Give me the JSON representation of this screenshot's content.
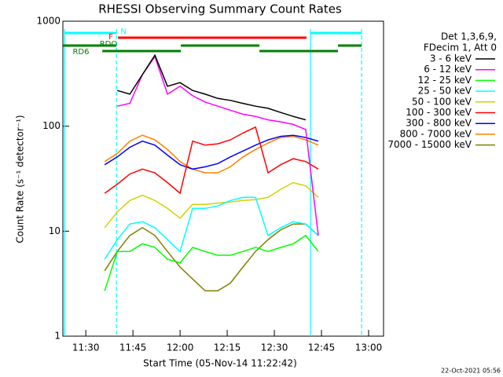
{
  "chart_data": {
    "type": "line",
    "title": "RHESSI Observing Summary Count Rates",
    "xlabel": "Start Time (05-Nov-14 11:22:42)",
    "ylabel": "Count Rate (s⁻¹ detector⁻¹)",
    "legend_header": [
      "Det 1,3,6,9,",
      "FDecim 1, Att 0"
    ],
    "footer": "22-Oct-2021 05:56",
    "log_y": true,
    "xlim": [
      682.7,
      784.75
    ],
    "ylim": [
      1,
      1000
    ],
    "xticks": [
      {
        "value": 690,
        "label": "11:30"
      },
      {
        "value": 705,
        "label": "11:45"
      },
      {
        "value": 720,
        "label": "12:00"
      },
      {
        "value": 735,
        "label": "12:15"
      },
      {
        "value": 750,
        "label": "12:30"
      },
      {
        "value": 765,
        "label": "12:45"
      },
      {
        "value": 780,
        "label": "13:00"
      }
    ],
    "yticks": [
      1,
      10,
      100,
      1000
    ],
    "x": [
      696,
      700,
      704,
      708,
      712,
      716,
      720,
      724,
      728,
      732,
      736,
      740,
      744,
      748,
      752,
      756,
      760,
      764
    ],
    "series": [
      {
        "name": "3 - 6 keV",
        "color": "#000000",
        "values": [
          null,
          219,
          202,
          310,
          475,
          240,
          260,
          219,
          202,
          184,
          176,
          165,
          155,
          148,
          135,
          124,
          115,
          null
        ]
      },
      {
        "name": "6 - 12 keV",
        "color": "#ff00ff",
        "values": [
          null,
          155,
          165,
          310,
          460,
          202,
          240,
          195,
          170,
          155,
          142,
          130,
          124,
          115,
          110,
          104,
          93,
          9.1
        ]
      },
      {
        "name": "12 - 25 keV",
        "color": "#00ff00",
        "values": [
          2.7,
          6.4,
          6.4,
          7.6,
          7.0,
          5.4,
          5.0,
          7.0,
          6.4,
          5.9,
          5.9,
          6.4,
          7.0,
          6.4,
          7.0,
          7.6,
          9.1,
          6.4
        ]
      },
      {
        "name": "25 - 50 keV",
        "color": "#00ffff",
        "values": [
          5.4,
          8.3,
          11.7,
          12.3,
          10.8,
          8.3,
          6.4,
          16.5,
          16.5,
          17.4,
          19.6,
          21,
          21,
          9.1,
          10.8,
          12.3,
          11.7,
          9.1
        ]
      },
      {
        "name": "50 - 100 keV",
        "color": "#d2d200",
        "values": [
          10.8,
          15.2,
          19.6,
          22,
          19.6,
          16.5,
          13.3,
          18,
          18,
          18.5,
          19,
          19.6,
          20,
          21,
          25,
          29,
          27,
          21
        ]
      },
      {
        "name": "100 - 300 keV",
        "color": "#ff0000",
        "values": [
          23,
          28,
          35,
          39,
          36,
          29,
          23,
          72,
          66,
          68,
          74,
          86,
          98,
          36,
          43,
          49,
          46,
          39
        ]
      },
      {
        "name": "300 - 800 keV",
        "color": "#0000ff",
        "values": [
          43,
          51,
          63,
          72,
          66,
          53,
          43,
          39,
          41,
          44,
          51,
          58,
          66,
          74,
          80,
          82,
          78,
          72
        ]
      },
      {
        "name": "800 - 7000 keV",
        "color": "#ff8000",
        "values": [
          46,
          55,
          72,
          82,
          74,
          60,
          46,
          39,
          36,
          36,
          41,
          51,
          60,
          69,
          78,
          80,
          74,
          66
        ]
      },
      {
        "name": "7000 - 15000 keV",
        "color": "#808000",
        "values": [
          4.2,
          6.4,
          9.1,
          10.8,
          9.1,
          6.4,
          4.55,
          3.5,
          2.7,
          2.7,
          3.2,
          4.55,
          6.4,
          8.3,
          10.3,
          11.7,
          11.7,
          9.1
        ]
      }
    ],
    "flags": [
      {
        "label": "N",
        "color": "#00ffff",
        "segments": [
          [
            683.25,
            699.75
          ],
          [
            761.5,
            777.75
          ]
        ]
      },
      {
        "label": "F",
        "color": "#ff0000",
        "segments": [
          [
            700.25,
            760.25
          ]
        ]
      },
      {
        "label": "RDO",
        "color": "#008000",
        "segments": [
          [
            682.75,
            699.75
          ],
          [
            720.25,
            745.25
          ],
          [
            770.25,
            777.75
          ]
        ]
      },
      {
        "label": "RD6",
        "color": "#008000",
        "segments": [
          [
            695.25,
            720.25
          ],
          [
            745.25,
            770.25
          ]
        ]
      }
    ],
    "vlines": [
      {
        "x": 683.25,
        "dashed": false
      },
      {
        "x": 699.75,
        "dashed": true
      },
      {
        "x": 761.5,
        "dashed": false
      },
      {
        "x": 777.75,
        "dashed": true
      }
    ],
    "vline_color": "#00ffff"
  }
}
